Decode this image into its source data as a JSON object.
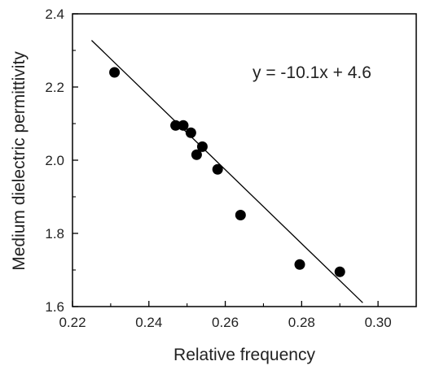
{
  "chart_data": {
    "type": "scatter",
    "xlabel": "Relative frequency",
    "ylabel": "Medium dielectric permittivity",
    "xlim": [
      0.22,
      0.31
    ],
    "ylim": [
      1.6,
      2.4
    ],
    "xticks": [
      "0.22",
      "0.24",
      "0.26",
      "0.28",
      "0.30"
    ],
    "yticks": [
      "1.6",
      "1.8",
      "2.0",
      "2.2",
      "2.4"
    ],
    "grid": false,
    "series": [
      {
        "x": [
          0.231,
          0.247,
          0.249,
          0.251,
          0.2525,
          0.254,
          0.258,
          0.264,
          0.2795,
          0.29
        ],
        "y": [
          2.24,
          2.095,
          2.095,
          2.075,
          2.015,
          2.037,
          1.975,
          1.85,
          1.715,
          1.695
        ]
      }
    ],
    "fit_line": {
      "slope": -10.1,
      "intercept": 4.6,
      "x_range": [
        0.225,
        0.296
      ]
    },
    "annotation": "y = -10.1x + 4.6"
  }
}
